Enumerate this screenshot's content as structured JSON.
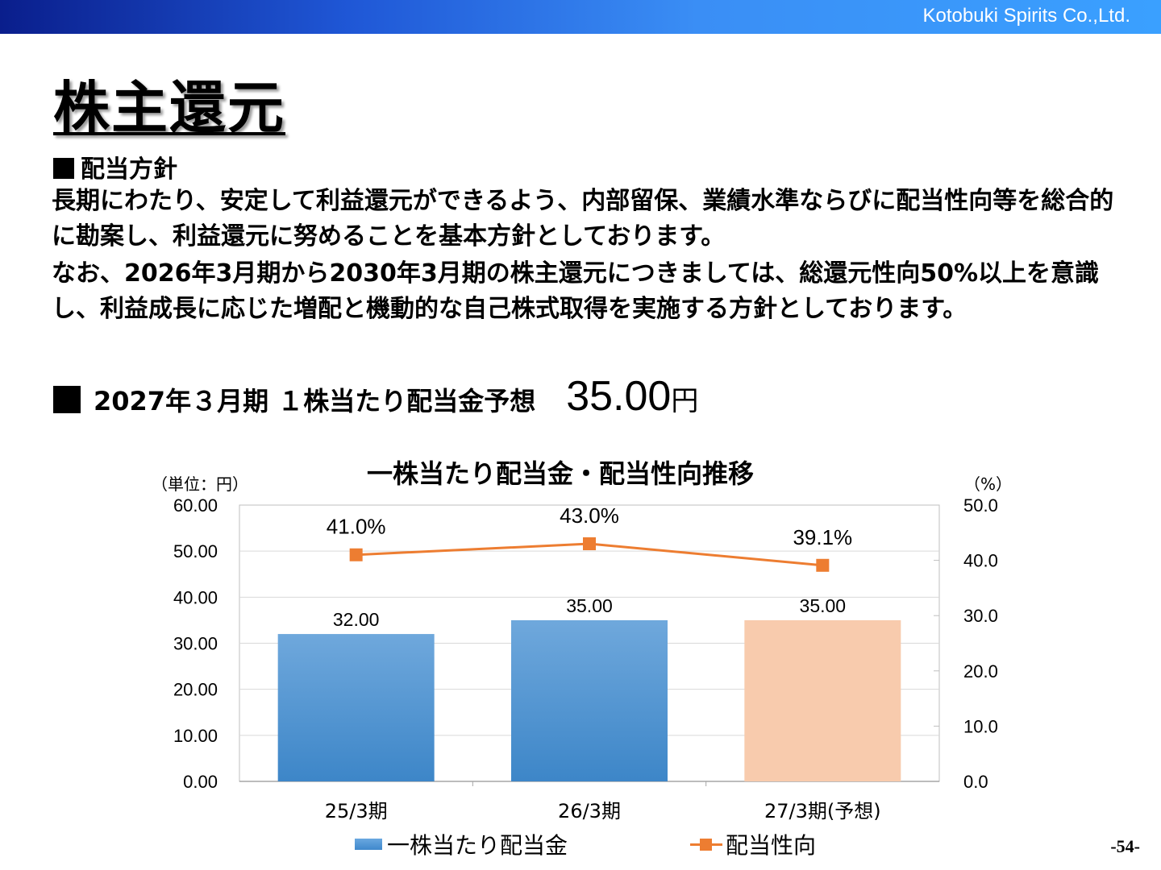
{
  "header": {
    "company": "Kotobuki Spirits Co.,Ltd."
  },
  "page_title": "株主還元",
  "policy": {
    "heading": "配当方針",
    "paragraph1": "長期にわたり、安定して利益還元ができるよう、内部留保、業績水準ならびに配当性向等を総合的に勘案し、利益還元に努めることを基本方針としております。",
    "paragraph2": "なお、2026年3月期から2030年3月期の株主還元につきましては、総還元性向50%以上を意識し、利益成長に応じた増配と機動的な自己株式取得を実施する方針としております。"
  },
  "forecast": {
    "label": "2027年３月期 １株当たり配当金予想",
    "value": "35.00",
    "unit": "円"
  },
  "chart_data": {
    "type": "bar",
    "title": "一株当たり配当金・配当性向推移",
    "categories": [
      "25/3期",
      "26/3期",
      "27/3期(予想)"
    ],
    "left_unit_label": "（単位：円）",
    "right_unit_label": "（%）",
    "y_left": {
      "lim": [
        0,
        60
      ],
      "ticks": [
        "0.00",
        "10.00",
        "20.00",
        "30.00",
        "40.00",
        "50.00",
        "60.00"
      ]
    },
    "y_right": {
      "lim": [
        0,
        50
      ],
      "ticks": [
        "0.0",
        "10.0",
        "20.0",
        "30.0",
        "40.0",
        "50.0"
      ]
    },
    "series": [
      {
        "name": "一株当たり配当金",
        "kind": "bar",
        "values": [
          32.0,
          35.0,
          35.0
        ],
        "labels": [
          "32.00",
          "35.00",
          "35.00"
        ],
        "colors": [
          "#5b9bd5",
          "#5b9bd5",
          "#f8cbad"
        ]
      },
      {
        "name": "配当性向",
        "kind": "line",
        "axis": "right",
        "values": [
          41.0,
          43.0,
          39.1
        ],
        "labels": [
          "41.0%",
          "43.0%",
          "39.1%"
        ],
        "color": "#ed7d31"
      }
    ],
    "grid": true,
    "legend": "bottom"
  },
  "page_number": "-54-"
}
